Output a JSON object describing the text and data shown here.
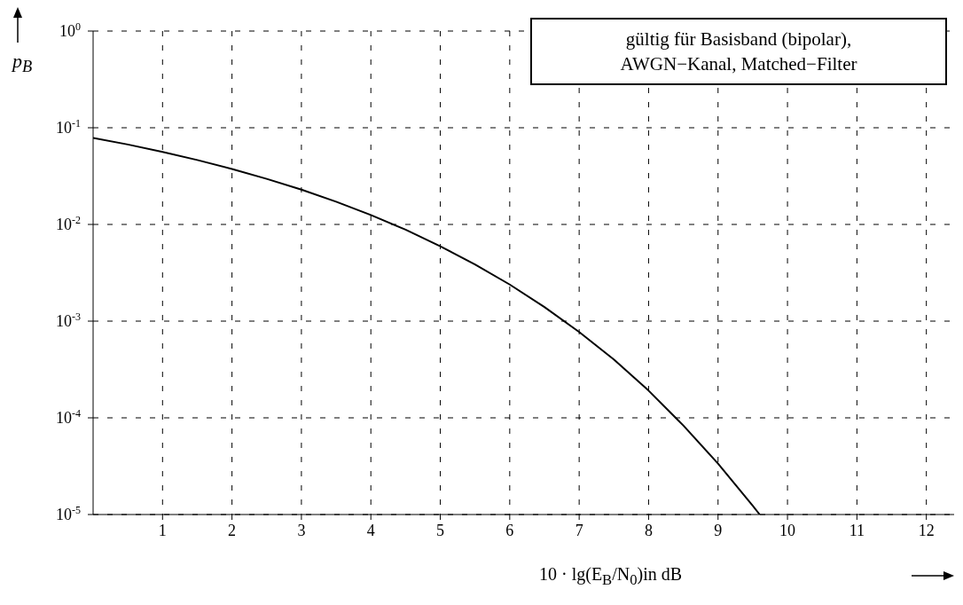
{
  "chart_data": {
    "type": "line",
    "xlabel": "10 · lg(E$_{B}$/N$_{0}$)in dB",
    "ylabel": "p$_{B}$",
    "annotations": [
      "gültig für Basisband (bipolar), AWGN−Kanal, Matched−Filter"
    ],
    "x": [
      0,
      0.5,
      1,
      1.5,
      2,
      2.5,
      3,
      3.5,
      4,
      4.5,
      5,
      5.5,
      6,
      6.5,
      7,
      7.5,
      8,
      8.5,
      9,
      9.5,
      9.6
    ],
    "series": [
      {
        "color": "#000000",
        "values": [
          0.0786,
          0.0671,
          0.0563,
          0.0464,
          0.0375,
          0.0296,
          0.0229,
          0.0172,
          0.0125,
          0.00882,
          0.00595,
          0.00386,
          0.00239,
          0.0014,
          0.000773,
          0.000401,
          0.000191,
          8.34e-05,
          3.36e-05,
          1.23e-05,
          1e-05
        ]
      }
    ],
    "log": "y",
    "grid": true,
    "marker": "none",
    "line_style": "solid",
    "xlim": [
      0,
      12.4
    ],
    "xticks": [
      1,
      2,
      3,
      4,
      5,
      6,
      7,
      8,
      9,
      10,
      11,
      12
    ],
    "ylim": [
      1e-05,
      1
    ],
    "yticks": [
      {
        "value": 1e-05,
        "label": "10$^{-5}$"
      },
      {
        "value": 0.0001,
        "label": "10$^{-4}$"
      },
      {
        "value": 0.001,
        "label": "10$^{-3}$"
      },
      {
        "value": 0.01,
        "label": "10$^{-2}$"
      },
      {
        "value": 0.1,
        "label": "10$^{-1}$"
      },
      {
        "value": 1,
        "label": "10$^{0}$"
      }
    ]
  }
}
